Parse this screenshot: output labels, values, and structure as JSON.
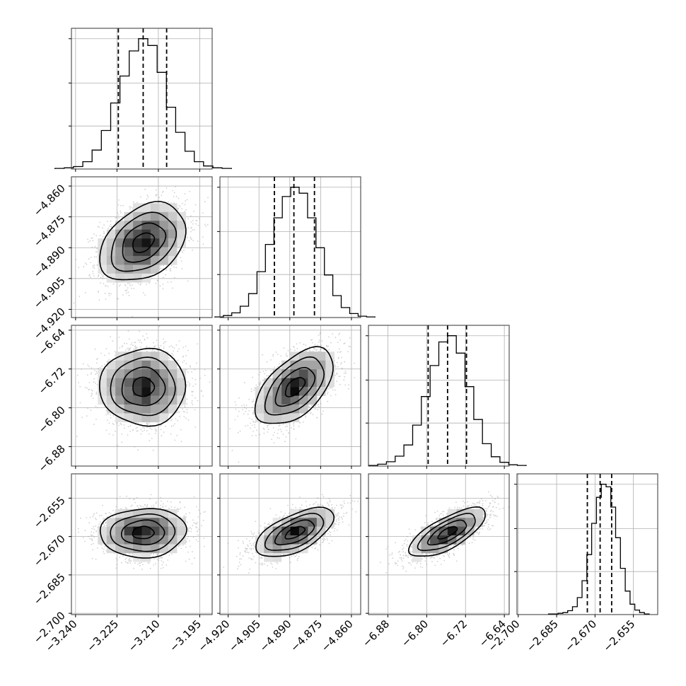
{
  "chart_data": {
    "type": "corner",
    "grid": true,
    "parameters": [
      {
        "mean": -3.2155,
        "sd": 0.0078,
        "range": [
          -3.2415,
          -3.1905
        ],
        "quantiles": [
          -3.2245,
          -3.2155,
          -3.207
        ],
        "ticks": [
          -3.24,
          -3.225,
          -3.21,
          -3.195
        ],
        "tick_labels": [
          "−3.240",
          "−3.225",
          "−3.210",
          "−3.195"
        ],
        "hist_bins": [
          1,
          2,
          4,
          12,
          31,
          63,
          108,
          152,
          193,
          213,
          202,
          158,
          101,
          60,
          29,
          12,
          5,
          2,
          1
        ],
        "hist_ticks": [
          0.33,
          0.66,
          1.0
        ]
      },
      {
        "mean": -4.8875,
        "sd": 0.0095,
        "range": [
          -4.924,
          -4.8555
        ],
        "quantiles": [
          -4.8975,
          -4.888,
          -4.878
        ],
        "ticks": [
          -4.92,
          -4.905,
          -4.89,
          -4.875,
          -4.86
        ],
        "tick_labels": [
          "−4.920",
          "−4.905",
          "−4.890",
          "−4.875",
          "−4.860"
        ],
        "hist_bins": [
          1,
          3,
          7,
          17,
          36,
          69,
          110,
          150,
          182,
          196,
          187,
          150,
          105,
          64,
          33,
          15,
          6,
          2,
          1
        ],
        "hist_ticks": [
          0.33,
          0.66,
          1.0
        ]
      },
      {
        "mean": -6.757,
        "sd": 0.0395,
        "range": [
          -6.92,
          -6.63
        ],
        "quantiles": [
          -6.797,
          -6.757,
          -6.718
        ],
        "ticks": [
          -6.88,
          -6.8,
          -6.72,
          -6.64
        ],
        "tick_labels": [
          "−6.88",
          "−6.80",
          "−6.72",
          "−6.64"
        ],
        "hist_bins": [
          1,
          3,
          7,
          16,
          34,
          66,
          112,
          162,
          200,
          210,
          182,
          128,
          75,
          36,
          15,
          6,
          2,
          1
        ],
        "hist_ticks": [
          0.33,
          0.66,
          1.0
        ]
      },
      {
        "mean": -2.6685,
        "sd": 0.0048,
        "range": [
          -2.7005,
          -2.6455
        ],
        "quantiles": [
          -2.673,
          -2.668,
          -2.6635
        ],
        "ticks": [
          -2.7,
          -2.685,
          -2.67,
          -2.655
        ],
        "tick_labels": [
          "−2.700",
          "−2.685",
          "−2.670",
          "−2.655"
        ],
        "hist_bins": [
          1,
          1,
          2,
          3,
          6,
          12,
          26,
          52,
          92,
          140,
          180,
          200,
          196,
          165,
          118,
          71,
          36,
          16,
          7,
          3,
          1
        ],
        "hist_ticks": [
          0.33,
          0.66,
          1.0
        ]
      }
    ],
    "correlations": [
      [
        1.0,
        0.35,
        0.0,
        0.05
      ],
      [
        0.35,
        1.0,
        0.55,
        0.6
      ],
      [
        0.0,
        0.55,
        1.0,
        0.72
      ],
      [
        0.05,
        0.6,
        0.72,
        1.0
      ]
    ],
    "contour_levels_sigma": [
      0.5,
      1.0,
      1.5,
      2.0
    ]
  }
}
